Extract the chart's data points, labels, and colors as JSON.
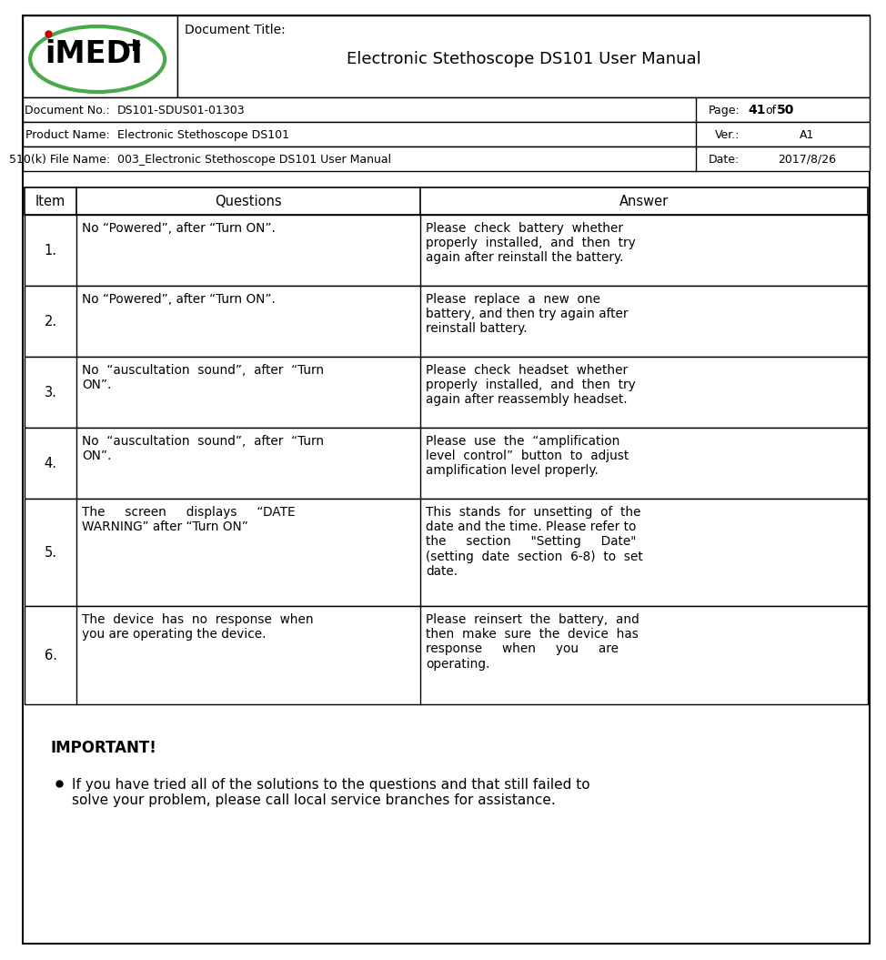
{
  "bg_color": "#ffffff",
  "header": {
    "doc_title_label": "Document Title:",
    "doc_title_value": "Electronic Stethoscope DS101 User Manual",
    "doc_no_label": "Document No.:",
    "doc_no_value": "DS101-SDUS01-01303",
    "page_label": "Page:",
    "page_value": "41",
    "page_of": "of",
    "page_total": "50",
    "product_label": "Product Name:",
    "product_value": "Electronic Stethoscope DS101",
    "ver_label": "Ver.:",
    "ver_value": "A1",
    "file_label": "510(k) File Name:",
    "file_value": "003_Electronic Stethoscope DS101 User Manual",
    "date_label": "Date:",
    "date_value": "2017/8/26"
  },
  "table": {
    "col_headers": [
      "Item",
      "Questions",
      "Answer"
    ],
    "rows": [
      {
        "item": "1.",
        "question": "No “Powered”, after “Turn ON”.",
        "answer": "Please  check  battery  whether\nproperly  installed,  and  then  try\nagain after reinstall the battery."
      },
      {
        "item": "2.",
        "question": "No “Powered”, after “Turn ON”.",
        "answer": "Please  replace  a  new  one\nbattery, and then try again after\nreinstall battery."
      },
      {
        "item": "3.",
        "question": "No  “auscultation  sound”,  after  “Turn\nON”.",
        "answer": "Please  check  headset  whether\nproperly  installed,  and  then  try\nagain after reassembly headset."
      },
      {
        "item": "4.",
        "question": "No  “auscultation  sound”,  after  “Turn\nON”.",
        "answer": "Please  use  the  “amplification\nlevel  control”  button  to  adjust\namplification level properly."
      },
      {
        "item": "5.",
        "question": "The     screen     displays     “DATE\nWARNING” after “Turn ON”",
        "answer": "This  stands  for  unsetting  of  the\ndate and the time. Please refer to\nthe     section     \"Setting     Date\"\n(setting  date  section  6-8)  to  set\ndate."
      },
      {
        "item": "6.",
        "question": "The  device  has  no  response  when\nyou are operating the device.",
        "answer": "Please  reinsert  the  battery,  and\nthen  make  sure  the  device  has\nresponse     when     you     are\noperating."
      }
    ]
  },
  "table_row_heights": [
    78,
    78,
    78,
    78,
    118,
    108
  ],
  "important_title": "IMPORTANT!",
  "important_bullet": "If you have tried all of the solutions to the questions and that still failed to\nsolve your problem, please call local service branches for assistance.",
  "logo_oval_color": "#4aaa4a",
  "logo_red_color": "#cc0000",
  "logo_text_color": "#000000"
}
